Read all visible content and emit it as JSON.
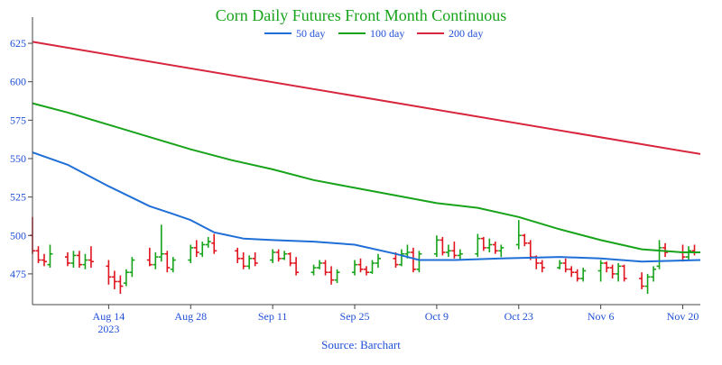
{
  "chart_data": {
    "type": "ohlc+line",
    "title": "Corn Daily Futures Front Month Continuous",
    "source": "Source: Barchart",
    "ylim": [
      455,
      635
    ],
    "yticks": [
      475,
      500,
      525,
      550,
      575,
      600,
      625
    ],
    "xlim": [
      "2023-08-01",
      "2023-11-23"
    ],
    "xticks": [
      {
        "date": "2023-08-14",
        "label": "Aug 14",
        "sublabel": "2023"
      },
      {
        "date": "2023-08-28",
        "label": "Aug 28"
      },
      {
        "date": "2023-09-11",
        "label": "Sep 11"
      },
      {
        "date": "2023-09-25",
        "label": "Sep 25"
      },
      {
        "date": "2023-10-09",
        "label": "Oct 9"
      },
      {
        "date": "2023-10-23",
        "label": "Oct 23"
      },
      {
        "date": "2023-11-06",
        "label": "Nov 6"
      },
      {
        "date": "2023-11-20",
        "label": "Nov 20"
      }
    ],
    "legend": {
      "placement": "top-center"
    },
    "series": [
      {
        "name": "50 day",
        "color": "#1f6fd6",
        "points": [
          [
            "2023-08-01",
            554
          ],
          [
            "2023-08-07",
            546
          ],
          [
            "2023-08-14",
            532
          ],
          [
            "2023-08-21",
            519
          ],
          [
            "2023-08-25",
            514
          ],
          [
            "2023-08-28",
            510
          ],
          [
            "2023-09-01",
            502
          ],
          [
            "2023-09-06",
            498
          ],
          [
            "2023-09-11",
            497
          ],
          [
            "2023-09-18",
            496
          ],
          [
            "2023-09-25",
            494
          ],
          [
            "2023-10-02",
            488
          ],
          [
            "2023-10-06",
            484
          ],
          [
            "2023-10-12",
            484
          ],
          [
            "2023-10-20",
            485
          ],
          [
            "2023-10-30",
            486
          ],
          [
            "2023-11-06",
            485
          ],
          [
            "2023-11-13",
            483
          ],
          [
            "2023-11-23",
            484
          ]
        ]
      },
      {
        "name": "100 day",
        "color": "#17a31a",
        "points": [
          [
            "2023-08-01",
            586
          ],
          [
            "2023-08-07",
            580
          ],
          [
            "2023-08-14",
            572
          ],
          [
            "2023-08-21",
            564
          ],
          [
            "2023-08-28",
            556
          ],
          [
            "2023-09-04",
            549
          ],
          [
            "2023-09-11",
            543
          ],
          [
            "2023-09-18",
            536
          ],
          [
            "2023-09-25",
            531
          ],
          [
            "2023-10-02",
            526
          ],
          [
            "2023-10-09",
            521
          ],
          [
            "2023-10-16",
            518
          ],
          [
            "2023-10-23",
            512
          ],
          [
            "2023-10-30",
            504
          ],
          [
            "2023-11-06",
            497
          ],
          [
            "2023-11-13",
            491
          ],
          [
            "2023-11-20",
            489
          ],
          [
            "2023-11-23",
            489
          ]
        ]
      },
      {
        "name": "200 day",
        "color": "#d7263d",
        "points": [
          [
            "2023-08-01",
            626
          ],
          [
            "2023-11-23",
            553
          ]
        ]
      }
    ],
    "ohlc_colors": {
      "up": "#17a31a",
      "down": "#e0141e"
    },
    "ohlc": [
      [
        "2023-08-01",
        500,
        512,
        488,
        490
      ],
      [
        "2023-08-02",
        490,
        493,
        482,
        484
      ],
      [
        "2023-08-03",
        484,
        488,
        480,
        483
      ],
      [
        "2023-08-04",
        481,
        494,
        479,
        488
      ],
      [
        "2023-08-07",
        486,
        489,
        480,
        482
      ],
      [
        "2023-08-08",
        482,
        490,
        479,
        487
      ],
      [
        "2023-08-09",
        487,
        490,
        479,
        481
      ],
      [
        "2023-08-10",
        481,
        488,
        478,
        484
      ],
      [
        "2023-08-11",
        484,
        493,
        479,
        483
      ],
      [
        "2023-08-14",
        480,
        484,
        468,
        473
      ],
      [
        "2023-08-15",
        473,
        477,
        465,
        470
      ],
      [
        "2023-08-16",
        470,
        474,
        462,
        467
      ],
      [
        "2023-08-17",
        469,
        478,
        467,
        476
      ],
      [
        "2023-08-18",
        476,
        486,
        473,
        484
      ],
      [
        "2023-08-21",
        484,
        492,
        480,
        481
      ],
      [
        "2023-08-22",
        481,
        489,
        478,
        486
      ],
      [
        "2023-08-23",
        486,
        507,
        483,
        488
      ],
      [
        "2023-08-24",
        488,
        490,
        476,
        479
      ],
      [
        "2023-08-25",
        478,
        486,
        476,
        484
      ],
      [
        "2023-08-28",
        484,
        494,
        482,
        492
      ],
      [
        "2023-08-29",
        492,
        497,
        486,
        489
      ],
      [
        "2023-08-30",
        488,
        496,
        486,
        494
      ],
      [
        "2023-08-31",
        494,
        499,
        492,
        496
      ],
      [
        "2023-09-01",
        495,
        501,
        488,
        490
      ],
      [
        "2023-09-05",
        490,
        492,
        482,
        485
      ],
      [
        "2023-09-06",
        485,
        489,
        478,
        480
      ],
      [
        "2023-09-07",
        480,
        487,
        478,
        485
      ],
      [
        "2023-09-08",
        485,
        489,
        480,
        482
      ],
      [
        "2023-09-11",
        484,
        491,
        482,
        489
      ],
      [
        "2023-09-12",
        489,
        491,
        483,
        485
      ],
      [
        "2023-09-13",
        485,
        490,
        484,
        488
      ],
      [
        "2023-09-14",
        488,
        489,
        480,
        482
      ],
      [
        "2023-09-15",
        482,
        486,
        474,
        476
      ],
      [
        "2023-09-18",
        476,
        481,
        474,
        479
      ],
      [
        "2023-09-19",
        479,
        484,
        478,
        482
      ],
      [
        "2023-09-20",
        482,
        484,
        474,
        476
      ],
      [
        "2023-09-21",
        476,
        480,
        468,
        471
      ],
      [
        "2023-09-22",
        471,
        478,
        469,
        476
      ],
      [
        "2023-09-25",
        476,
        484,
        474,
        481
      ],
      [
        "2023-09-26",
        481,
        485,
        476,
        478
      ],
      [
        "2023-09-27",
        478,
        480,
        474,
        476
      ],
      [
        "2023-09-28",
        476,
        484,
        475,
        482
      ],
      [
        "2023-09-29",
        482,
        488,
        479,
        485
      ],
      [
        "2023-10-02",
        485,
        489,
        479,
        481
      ],
      [
        "2023-10-03",
        481,
        491,
        480,
        488
      ],
      [
        "2023-10-04",
        488,
        494,
        485,
        489
      ],
      [
        "2023-10-05",
        489,
        492,
        476,
        478
      ],
      [
        "2023-10-06",
        478,
        490,
        476,
        488
      ],
      [
        "2023-10-09",
        488,
        500,
        486,
        497
      ],
      [
        "2023-10-10",
        497,
        499,
        487,
        489
      ],
      [
        "2023-10-11",
        489,
        494,
        486,
        490
      ],
      [
        "2023-10-12",
        490,
        496,
        485,
        487
      ],
      [
        "2023-10-13",
        487,
        491,
        484,
        488
      ],
      [
        "2023-10-16",
        488,
        501,
        486,
        498
      ],
      [
        "2023-10-17",
        498,
        499,
        490,
        492
      ],
      [
        "2023-10-18",
        492,
        498,
        489,
        494
      ],
      [
        "2023-10-19",
        494,
        496,
        488,
        490
      ],
      [
        "2023-10-20",
        490,
        494,
        486,
        492
      ],
      [
        "2023-10-23",
        494,
        510,
        491,
        500
      ],
      [
        "2023-10-24",
        500,
        501,
        493,
        495
      ],
      [
        "2023-10-25",
        495,
        497,
        484,
        486
      ],
      [
        "2023-10-26",
        486,
        487,
        478,
        482
      ],
      [
        "2023-10-27",
        482,
        484,
        476,
        479
      ],
      [
        "2023-10-30",
        479,
        484,
        478,
        482
      ],
      [
        "2023-10-31",
        482,
        485,
        476,
        478
      ],
      [
        "2023-11-01",
        478,
        480,
        473,
        476
      ],
      [
        "2023-11-02",
        476,
        478,
        470,
        472
      ],
      [
        "2023-11-03",
        472,
        479,
        470,
        477
      ],
      [
        "2023-11-06",
        477,
        484,
        470,
        482
      ],
      [
        "2023-11-07",
        482,
        483,
        476,
        479
      ],
      [
        "2023-11-08",
        479,
        481,
        472,
        475
      ],
      [
        "2023-11-09",
        475,
        482,
        470,
        480
      ],
      [
        "2023-11-10",
        480,
        481,
        470,
        472
      ],
      [
        "2023-11-13",
        472,
        476,
        465,
        467
      ],
      [
        "2023-11-14",
        467,
        475,
        462,
        473
      ],
      [
        "2023-11-15",
        473,
        480,
        470,
        478
      ],
      [
        "2023-11-16",
        480,
        497,
        478,
        492
      ],
      [
        "2023-11-17",
        492,
        495,
        486,
        489
      ],
      [
        "2023-11-20",
        489,
        494,
        483,
        486
      ],
      [
        "2023-11-21",
        486,
        493,
        484,
        490
      ],
      [
        "2023-11-22",
        490,
        494,
        487,
        489
      ]
    ]
  }
}
